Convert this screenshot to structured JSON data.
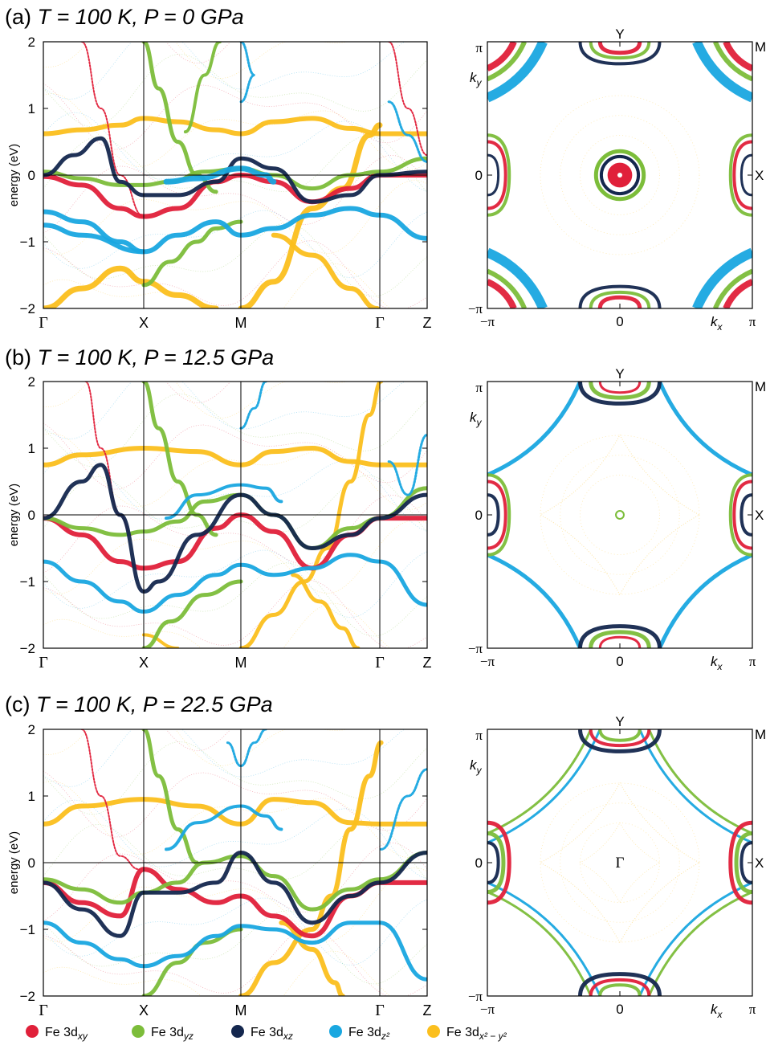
{
  "panels": [
    {
      "id": "a",
      "label_prefix": "(a)",
      "temperature": "T = 100 K,",
      "pressure": "P = 0 GPa",
      "band": {
        "ylabel": "energy (eV)",
        "ylim": [
          -2,
          2
        ],
        "yticks": [
          "2",
          "1",
          "0",
          "−1",
          "−2"
        ],
        "kpath": [
          "Γ",
          "X",
          "M",
          "Γ",
          "Z"
        ]
      },
      "fs": {
        "top_label": "Y",
        "corner_label": "M",
        "right_label": "X",
        "ky": "k",
        "ky_sub": "y",
        "kx": "k",
        "kx_sub": "x",
        "pi": "π",
        "neg_pi": "−π",
        "zero": "0",
        "center_label": ""
      }
    },
    {
      "id": "b",
      "label_prefix": "(b)",
      "temperature": "T = 100 K,",
      "pressure": "P = 12.5 GPa",
      "band": {
        "ylabel": "energy (eV)",
        "ylim": [
          -2,
          2
        ],
        "yticks": [
          "2",
          "1",
          "0",
          "−1",
          "−2"
        ],
        "kpath": [
          "Γ",
          "X",
          "M",
          "Γ",
          "Z"
        ]
      },
      "fs": {
        "top_label": "Y",
        "corner_label": "M",
        "right_label": "X",
        "ky": "k",
        "ky_sub": "y",
        "kx": "k",
        "kx_sub": "x",
        "pi": "π",
        "neg_pi": "−π",
        "zero": "0",
        "center_label": ""
      }
    },
    {
      "id": "c",
      "label_prefix": "(c)",
      "temperature": "T = 100 K,",
      "pressure": "P = 22.5 GPa",
      "band": {
        "ylabel": "energy (eV)",
        "ylim": [
          -2,
          2
        ],
        "yticks": [
          "2",
          "1",
          "0",
          "−1",
          "−2"
        ],
        "kpath": [
          "Γ",
          "X",
          "M",
          "Γ",
          "Z"
        ]
      },
      "fs": {
        "top_label": "Y",
        "corner_label": "M",
        "right_label": "X",
        "ky": "k",
        "ky_sub": "y",
        "kx": "k",
        "kx_sub": "x",
        "pi": "π",
        "neg_pi": "−π",
        "zero": "0",
        "center_label": "Γ"
      }
    }
  ],
  "legend": [
    {
      "name": "Fe 3d",
      "sub": "xy",
      "color": "#e0203a"
    },
    {
      "name": "Fe 3d",
      "sub": "yz",
      "color": "#7cbd3a"
    },
    {
      "name": "Fe 3d",
      "sub": "xz",
      "color": "#14274e"
    },
    {
      "name": "Fe 3d",
      "sub": "z²",
      "color": "#19a7e0"
    },
    {
      "name": "Fe 3d",
      "sub": "x² − y²",
      "color": "#fbbf1e"
    }
  ],
  "colors": {
    "xy": "#e0203a",
    "yz": "#7cbd3a",
    "xz": "#14274e",
    "z2": "#19a7e0",
    "x2y2": "#fbbf1e"
  },
  "chart_data": {
    "type": "band-structure-and-fermi-surface",
    "panels": [
      {
        "label": "(a)",
        "bands_at_kpoints": {
          "kpath": [
            "Γ",
            "X",
            "M",
            "Γ",
            "Z"
          ],
          "x2y2": [
            0.62,
            0.85,
            0.62,
            0.62,
            0.62
          ],
          "xy": [
            -0.02,
            -0.62,
            0.0,
            0.0,
            -0.02
          ],
          "yz": [
            0.05,
            -0.15,
            0.1,
            0.05,
            0.25
          ],
          "xz": [
            0.0,
            -0.3,
            0.25,
            0.0,
            0.05
          ],
          "z2": [
            -0.55,
            -1.15,
            -0.9,
            -0.6,
            -0.95
          ]
        }
      },
      {
        "label": "(b)",
        "bands_at_kpoints": {
          "kpath": [
            "Γ",
            "X",
            "M",
            "Γ",
            "Z"
          ],
          "x2y2": [
            0.75,
            1.0,
            0.75,
            0.75,
            0.75
          ],
          "xy": [
            -0.05,
            -0.8,
            0.0,
            -0.05,
            -0.05
          ],
          "yz": [
            -0.05,
            -0.3,
            0.3,
            -0.05,
            0.4
          ],
          "xz": [
            -0.05,
            -1.15,
            0.3,
            -0.05,
            0.3
          ],
          "z2": [
            -0.7,
            -1.45,
            -0.75,
            -0.7,
            -1.35
          ]
        }
      },
      {
        "label": "(c)",
        "bands_at_kpoints": {
          "kpath": [
            "Γ",
            "X",
            "M",
            "Γ",
            "Z"
          ],
          "x2y2": [
            0.58,
            0.95,
            0.58,
            0.58,
            0.58
          ],
          "xy": [
            -0.3,
            -0.1,
            0.1,
            -0.3,
            -0.3
          ],
          "yz": [
            -0.25,
            -0.45,
            0.1,
            -0.25,
            0.15
          ],
          "xz": [
            -0.3,
            -0.45,
            0.15,
            -0.3,
            0.15
          ],
          "z2": [
            -0.9,
            -1.55,
            -0.95,
            -0.9,
            -1.75
          ]
        }
      }
    ]
  }
}
